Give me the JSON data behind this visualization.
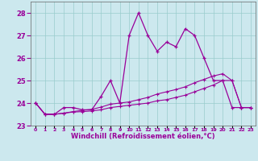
{
  "xlabel": "Windchill (Refroidissement éolien,°C)",
  "hours": [
    0,
    1,
    2,
    3,
    4,
    5,
    6,
    7,
    8,
    9,
    10,
    11,
    12,
    13,
    14,
    15,
    16,
    17,
    18,
    19,
    20,
    21,
    22,
    23
  ],
  "main_temp": [
    24.0,
    23.5,
    23.5,
    23.8,
    23.8,
    23.7,
    23.7,
    24.3,
    25.0,
    24.0,
    27.0,
    28.0,
    27.0,
    26.3,
    26.7,
    26.5,
    27.3,
    27.0,
    26.0,
    25.0,
    25.0,
    23.8,
    23.8,
    23.8
  ],
  "line2": [
    24.0,
    23.5,
    23.5,
    23.55,
    23.6,
    23.62,
    23.65,
    23.7,
    23.8,
    23.85,
    23.9,
    23.95,
    24.0,
    24.1,
    24.15,
    24.25,
    24.35,
    24.5,
    24.65,
    24.8,
    25.0,
    25.0,
    23.8,
    23.8
  ],
  "line3": [
    24.0,
    23.5,
    23.5,
    23.55,
    23.62,
    23.68,
    23.72,
    23.82,
    23.95,
    24.0,
    24.05,
    24.15,
    24.25,
    24.4,
    24.5,
    24.6,
    24.72,
    24.9,
    25.05,
    25.2,
    25.3,
    25.0,
    23.8,
    23.8
  ],
  "line_color": "#990099",
  "bg_color": "#cce8ee",
  "grid_color": "#99cccc",
  "ylim": [
    23.0,
    28.5
  ],
  "yticks": [
    23,
    24,
    25,
    26,
    27,
    28
  ]
}
